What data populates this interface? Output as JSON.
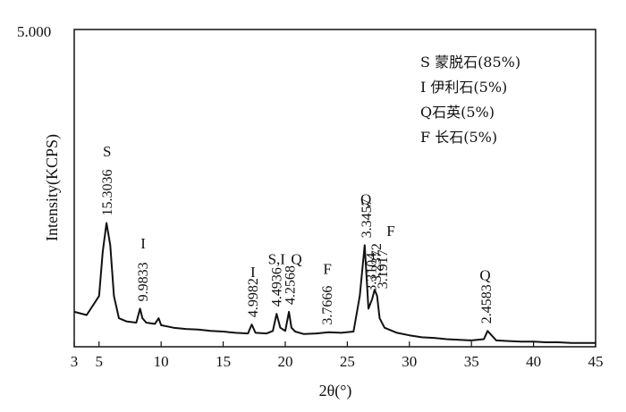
{
  "chart_data": {
    "type": "line",
    "title": "",
    "xlabel": "2θ(°)",
    "ylabel": "Intensity(KCPS)",
    "ymax_label": "5.000",
    "xlim": [
      3,
      45
    ],
    "ylim": [
      0,
      5
    ],
    "x_ticks": [
      3,
      5,
      10,
      15,
      20,
      25,
      30,
      35,
      40,
      45
    ],
    "grid": false,
    "legend": [
      {
        "code": "S",
        "text": "蒙脱石(85%)"
      },
      {
        "code": "I",
        "text": "伊利石(5%)"
      },
      {
        "code": "Q",
        "text": "石英(5%)"
      },
      {
        "code": "F",
        "text": "长石(5%)"
      }
    ],
    "series": [
      {
        "x": [
          3.0,
          4.0,
          5.0,
          5.3,
          5.6,
          5.9,
          6.2,
          6.6,
          7.2,
          8.0,
          8.3,
          8.5,
          8.8,
          9.5,
          9.8,
          10.0,
          11,
          12,
          13,
          14,
          15,
          16,
          17,
          17.3,
          17.6,
          18.5,
          19.0,
          19.3,
          19.6,
          20.0,
          20.3,
          20.5,
          20.8,
          21.5,
          22.5,
          23.5,
          24.5,
          25.5,
          26.0,
          26.4,
          26.7,
          27.0,
          27.2,
          27.4,
          27.6,
          28.0,
          29,
          30,
          31,
          32,
          33,
          34,
          35,
          36.0,
          36.3,
          37,
          38,
          39,
          40,
          41,
          42,
          43,
          44,
          45
        ],
        "y": [
          0.55,
          0.5,
          0.8,
          1.5,
          1.95,
          1.6,
          0.8,
          0.45,
          0.4,
          0.38,
          0.6,
          0.45,
          0.38,
          0.36,
          0.45,
          0.34,
          0.3,
          0.28,
          0.27,
          0.25,
          0.24,
          0.22,
          0.21,
          0.35,
          0.22,
          0.21,
          0.25,
          0.52,
          0.3,
          0.25,
          0.55,
          0.3,
          0.24,
          0.2,
          0.21,
          0.23,
          0.22,
          0.24,
          0.8,
          1.6,
          0.6,
          0.75,
          0.9,
          0.8,
          0.45,
          0.3,
          0.22,
          0.18,
          0.15,
          0.14,
          0.12,
          0.11,
          0.1,
          0.12,
          0.25,
          0.1,
          0.09,
          0.08,
          0.08,
          0.07,
          0.07,
          0.06,
          0.06,
          0.06
        ]
      }
    ],
    "peak_labels": [
      {
        "text": "15.3036",
        "x": 5.65,
        "y": 1.95
      },
      {
        "text": "9.9833",
        "x": 8.55,
        "y": 0.6
      },
      {
        "text": "4.9982",
        "x": 17.4,
        "y": 0.35
      },
      {
        "text": "4.4936",
        "x": 19.3,
        "y": 0.52
      },
      {
        "text": "4.2568",
        "x": 20.4,
        "y": 0.55
      },
      {
        "text": "3.7666",
        "x": 23.4,
        "y": 0.23
      },
      {
        "text": "3.3457",
        "x": 26.55,
        "y": 1.6
      },
      {
        "text": "3.3104",
        "x": 26.95,
        "y": 0.75
      },
      {
        "text": "3.2372",
        "x": 27.35,
        "y": 0.9
      },
      {
        "text": "3.1917",
        "x": 27.85,
        "y": 0.8
      },
      {
        "text": "2.4583",
        "x": 36.2,
        "y": 0.25
      }
    ],
    "phase_labels": [
      {
        "text": "S",
        "x": 5.65,
        "y": 3.0
      },
      {
        "text": "I",
        "x": 8.55,
        "y": 1.55
      },
      {
        "text": "I",
        "x": 17.4,
        "y": 1.1
      },
      {
        "text": "S,I",
        "x": 19.3,
        "y": 1.3
      },
      {
        "text": "Q",
        "x": 20.9,
        "y": 1.3
      },
      {
        "text": "F",
        "x": 23.4,
        "y": 1.15
      },
      {
        "text": "Q",
        "x": 26.5,
        "y": 2.25
      },
      {
        "text": "F",
        "x": 28.5,
        "y": 1.75
      },
      {
        "text": "Q",
        "x": 36.1,
        "y": 1.05
      }
    ]
  }
}
